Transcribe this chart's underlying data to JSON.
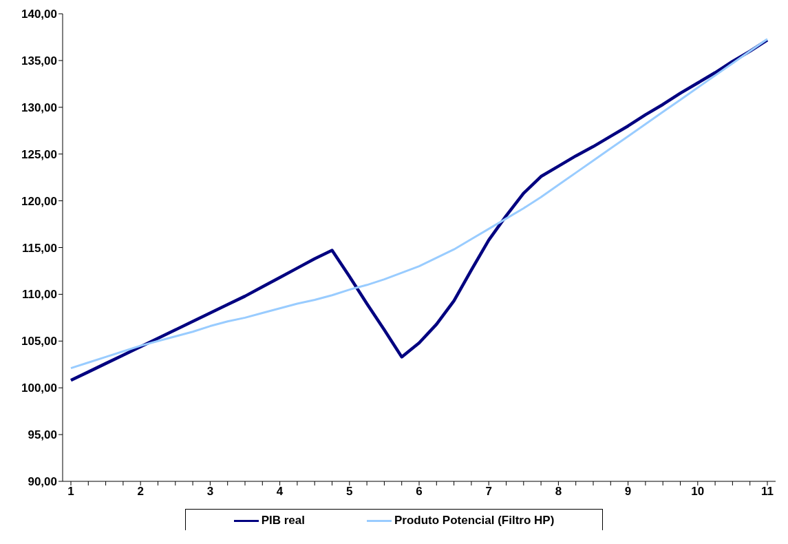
{
  "chart_data": {
    "type": "line",
    "categories": [
      "1",
      null,
      null,
      null,
      "2",
      null,
      null,
      null,
      "3",
      null,
      null,
      null,
      "4",
      null,
      null,
      null,
      "5",
      null,
      null,
      null,
      "6",
      null,
      null,
      null,
      "7",
      null,
      null,
      null,
      "8",
      null,
      null,
      null,
      "9",
      null,
      null,
      null,
      "10",
      null,
      null,
      null,
      "11"
    ],
    "series": [
      {
        "name": "PIB real",
        "color": "#000080",
        "values": [
          100.8,
          101.7,
          102.6,
          103.5,
          104.4,
          105.3,
          106.2,
          107.1,
          108.0,
          108.9,
          109.8,
          110.8,
          111.8,
          112.8,
          113.8,
          114.7,
          111.9,
          109.0,
          106.2,
          103.3,
          104.8,
          106.8,
          109.3,
          112.6,
          115.8,
          118.4,
          120.8,
          122.6,
          123.7,
          124.8,
          125.8,
          126.9,
          128.0,
          129.2,
          130.3,
          131.5,
          132.6,
          133.7,
          134.9,
          136.0,
          137.2
        ]
      },
      {
        "name": "Produto Potencial (Filtro HP)",
        "color": "#99ccff",
        "values": [
          102.1,
          102.7,
          103.3,
          103.9,
          104.5,
          105.0,
          105.5,
          106.0,
          106.6,
          107.1,
          107.5,
          108.0,
          108.5,
          109.0,
          109.4,
          109.9,
          110.5,
          111.0,
          111.6,
          112.3,
          113.0,
          113.9,
          114.8,
          115.9,
          117.0,
          118.1,
          119.2,
          120.4,
          121.7,
          123.0,
          124.3,
          125.6,
          126.9,
          128.2,
          129.5,
          130.8,
          132.1,
          133.4,
          134.7,
          136.0,
          137.3
        ]
      }
    ],
    "ylim": [
      90,
      140
    ],
    "yticks": [
      {
        "value": 90,
        "label": "90,00"
      },
      {
        "value": 95,
        "label": "95,00"
      },
      {
        "value": 100,
        "label": "100,00"
      },
      {
        "value": 105,
        "label": "105,00"
      },
      {
        "value": 110,
        "label": "110,00"
      },
      {
        "value": 115,
        "label": "115,00"
      },
      {
        "value": 120,
        "label": "120,00"
      },
      {
        "value": 125,
        "label": "125,00"
      },
      {
        "value": 130,
        "label": "130,00"
      },
      {
        "value": 135,
        "label": "135,00"
      },
      {
        "value": 140,
        "label": "140,00"
      }
    ],
    "grid": false,
    "legend": "bottom",
    "marker": "none",
    "line_style": "solid"
  }
}
